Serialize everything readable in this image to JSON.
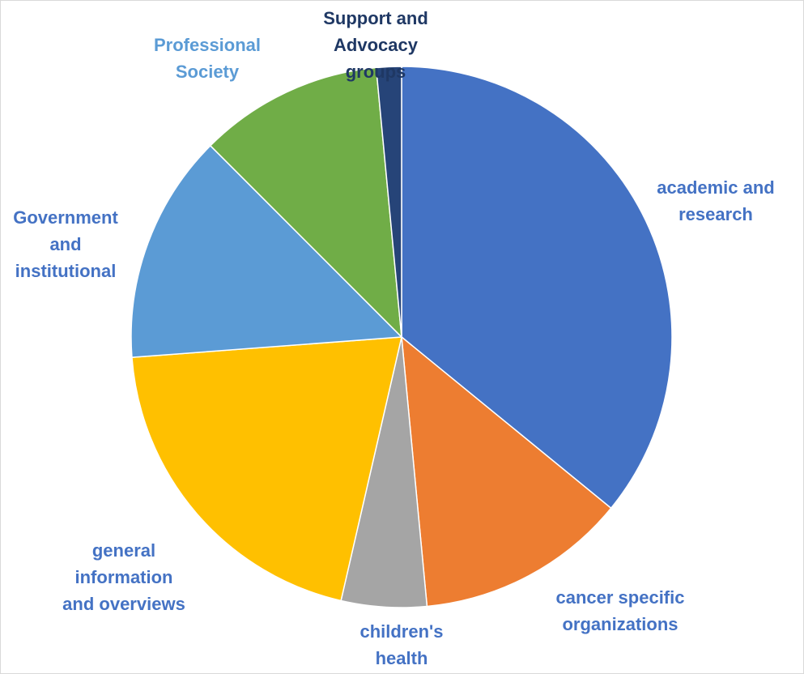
{
  "chart_data": {
    "type": "pie",
    "title": "",
    "start_angle_deg": 0,
    "direction": "clockwise",
    "slices": [
      {
        "label_lines": [
          "academic and",
          "research"
        ],
        "value": 35.9,
        "color": "#4472C4",
        "label_color": "#4472C4"
      },
      {
        "label_lines": [
          "cancer specific",
          "organizations"
        ],
        "value": 12.6,
        "color": "#ED7D31",
        "label_color": "#4472C4"
      },
      {
        "label_lines": [
          "children's",
          "health"
        ],
        "value": 5.1,
        "color": "#A5A5A5",
        "label_color": "#4472C4"
      },
      {
        "label_lines": [
          "general",
          "information",
          "and overviews"
        ],
        "value": 20.2,
        "color": "#FFC000",
        "label_color": "#4472C4"
      },
      {
        "label_lines": [
          "Government",
          "and",
          "institutional"
        ],
        "value": 13.7,
        "color": "#5B9BD5",
        "label_color": "#4472C4"
      },
      {
        "label_lines": [
          "Professional",
          "Society"
        ],
        "value": 11.0,
        "color": "#70AD47",
        "label_color": "#5B9BD5"
      },
      {
        "label_lines": [
          "Support and",
          "Advocacy",
          "groups"
        ],
        "value": 1.5,
        "color": "#264478",
        "label_color": "#1F3864"
      }
    ]
  }
}
